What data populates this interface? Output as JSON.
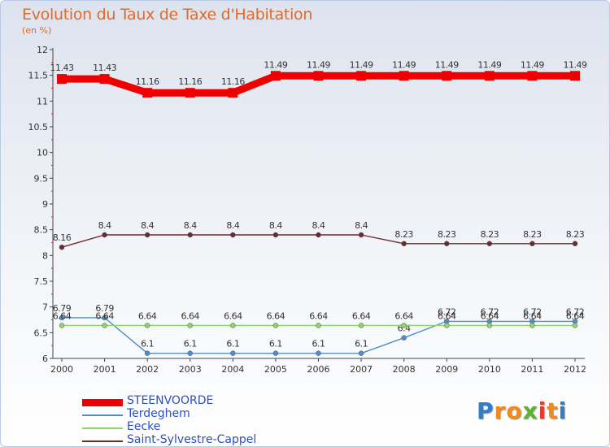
{
  "header": {
    "title": "Evolution du Taux de Taxe d'Habitation",
    "subtitle": "(en %)"
  },
  "chart_data": {
    "type": "line",
    "title": "Evolution du Taux de Taxe d'Habitation",
    "subtitle": "(en %)",
    "ylim": [
      6,
      12
    ],
    "yticks": [
      "6",
      "6.5",
      "7",
      "7.5",
      "8",
      "8.5",
      "9",
      "9.5",
      "10",
      "10.5",
      "11",
      "11.5",
      "12"
    ],
    "grid": false,
    "legend_position": "bottom-left",
    "x": [
      "2000",
      "2001",
      "2002",
      "2003",
      "2004",
      "2005",
      "2006",
      "2007",
      "2008",
      "2009",
      "2010",
      "2011",
      "2012"
    ],
    "series": [
      {
        "name": "STEENVOORDE",
        "color": "#ee0000",
        "values": [
          11.43,
          11.43,
          11.16,
          11.16,
          11.16,
          11.49,
          11.49,
          11.49,
          11.49,
          11.49,
          11.49,
          11.49,
          11.49
        ],
        "labels": [
          "11.43",
          "11.43",
          "11.16",
          "11.16",
          "11.16",
          "11.49",
          "11.49",
          "11.49",
          "11.49",
          "11.49",
          "11.49",
          "11.49",
          "11.49"
        ]
      },
      {
        "name": "Terdeghem",
        "color": "#4f8ec6",
        "values": [
          6.79,
          6.79,
          6.1,
          6.1,
          6.1,
          6.1,
          6.1,
          6.1,
          6.4,
          6.72,
          6.72,
          6.72,
          6.72
        ],
        "labels": [
          "6.79",
          "6.79",
          "6.1",
          "6.1",
          "6.1",
          "6.1",
          "6.1",
          "6.1",
          "6.4",
          "6.72",
          "6.72",
          "6.72",
          "6.72"
        ]
      },
      {
        "name": "Eecke",
        "color": "#8fd36b",
        "values": [
          6.64,
          6.64,
          6.64,
          6.64,
          6.64,
          6.64,
          6.64,
          6.64,
          6.64,
          6.64,
          6.64,
          6.64,
          6.64
        ],
        "labels": [
          "6.64",
          "6.64",
          "6.64",
          "6.64",
          "6.64",
          "6.64",
          "6.64",
          "6.64",
          "6.64",
          "6.64",
          "6.64",
          "6.64",
          "6.64"
        ]
      },
      {
        "name": "Saint-Sylvestre-Cappel",
        "color": "#6b2b2b",
        "values": [
          8.16,
          8.4,
          8.4,
          8.4,
          8.4,
          8.4,
          8.4,
          8.4,
          8.23,
          8.23,
          8.23,
          8.23,
          8.23
        ],
        "labels": [
          "8.16",
          "8.4",
          "8.4",
          "8.4",
          "8.4",
          "8.4",
          "8.4",
          "8.4",
          "8.23",
          "8.23",
          "8.23",
          "8.23",
          "8.23"
        ]
      }
    ]
  },
  "logo": {
    "letters": [
      "P",
      "r",
      "o",
      "x",
      "i",
      "t",
      "i"
    ],
    "colors": [
      "#2f7ec7",
      "#f08a1c",
      "#f08a1c",
      "#5bb233",
      "#e63c2e",
      "#f08a1c",
      "#2f7ec7"
    ]
  }
}
